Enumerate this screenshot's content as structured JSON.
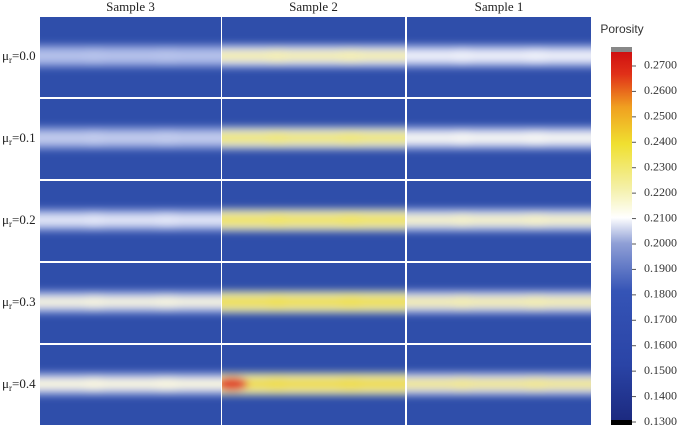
{
  "columns": [
    "Sample 3",
    "Sample 2",
    "Sample 1"
  ],
  "row_symbol": "μ",
  "row_subscript": "r",
  "rows": [
    "=0.0",
    "=0.1",
    "=0.2",
    "=0.3",
    "=0.4"
  ],
  "colorbar": {
    "title": "Porosity",
    "lim": [
      0.13,
      0.2755
    ],
    "ticks": [
      {
        "value": 0.13,
        "label": "0.1300"
      },
      {
        "value": 0.14,
        "label": "0.1400"
      },
      {
        "value": 0.15,
        "label": "0.1500"
      },
      {
        "value": 0.16,
        "label": "0.1600"
      },
      {
        "value": 0.17,
        "label": "0.1700"
      },
      {
        "value": 0.18,
        "label": "0.1800"
      },
      {
        "value": 0.19,
        "label": "0.1900"
      },
      {
        "value": 0.2,
        "label": "0.2000"
      },
      {
        "value": 0.21,
        "label": "0.2100"
      },
      {
        "value": 0.22,
        "label": "0.2200"
      },
      {
        "value": 0.23,
        "label": "0.2300"
      },
      {
        "value": 0.24,
        "label": "0.2400"
      },
      {
        "value": 0.25,
        "label": "0.2500"
      },
      {
        "value": 0.26,
        "label": "0.2600"
      },
      {
        "value": 0.27,
        "label": "0.2700"
      }
    ]
  }
}
